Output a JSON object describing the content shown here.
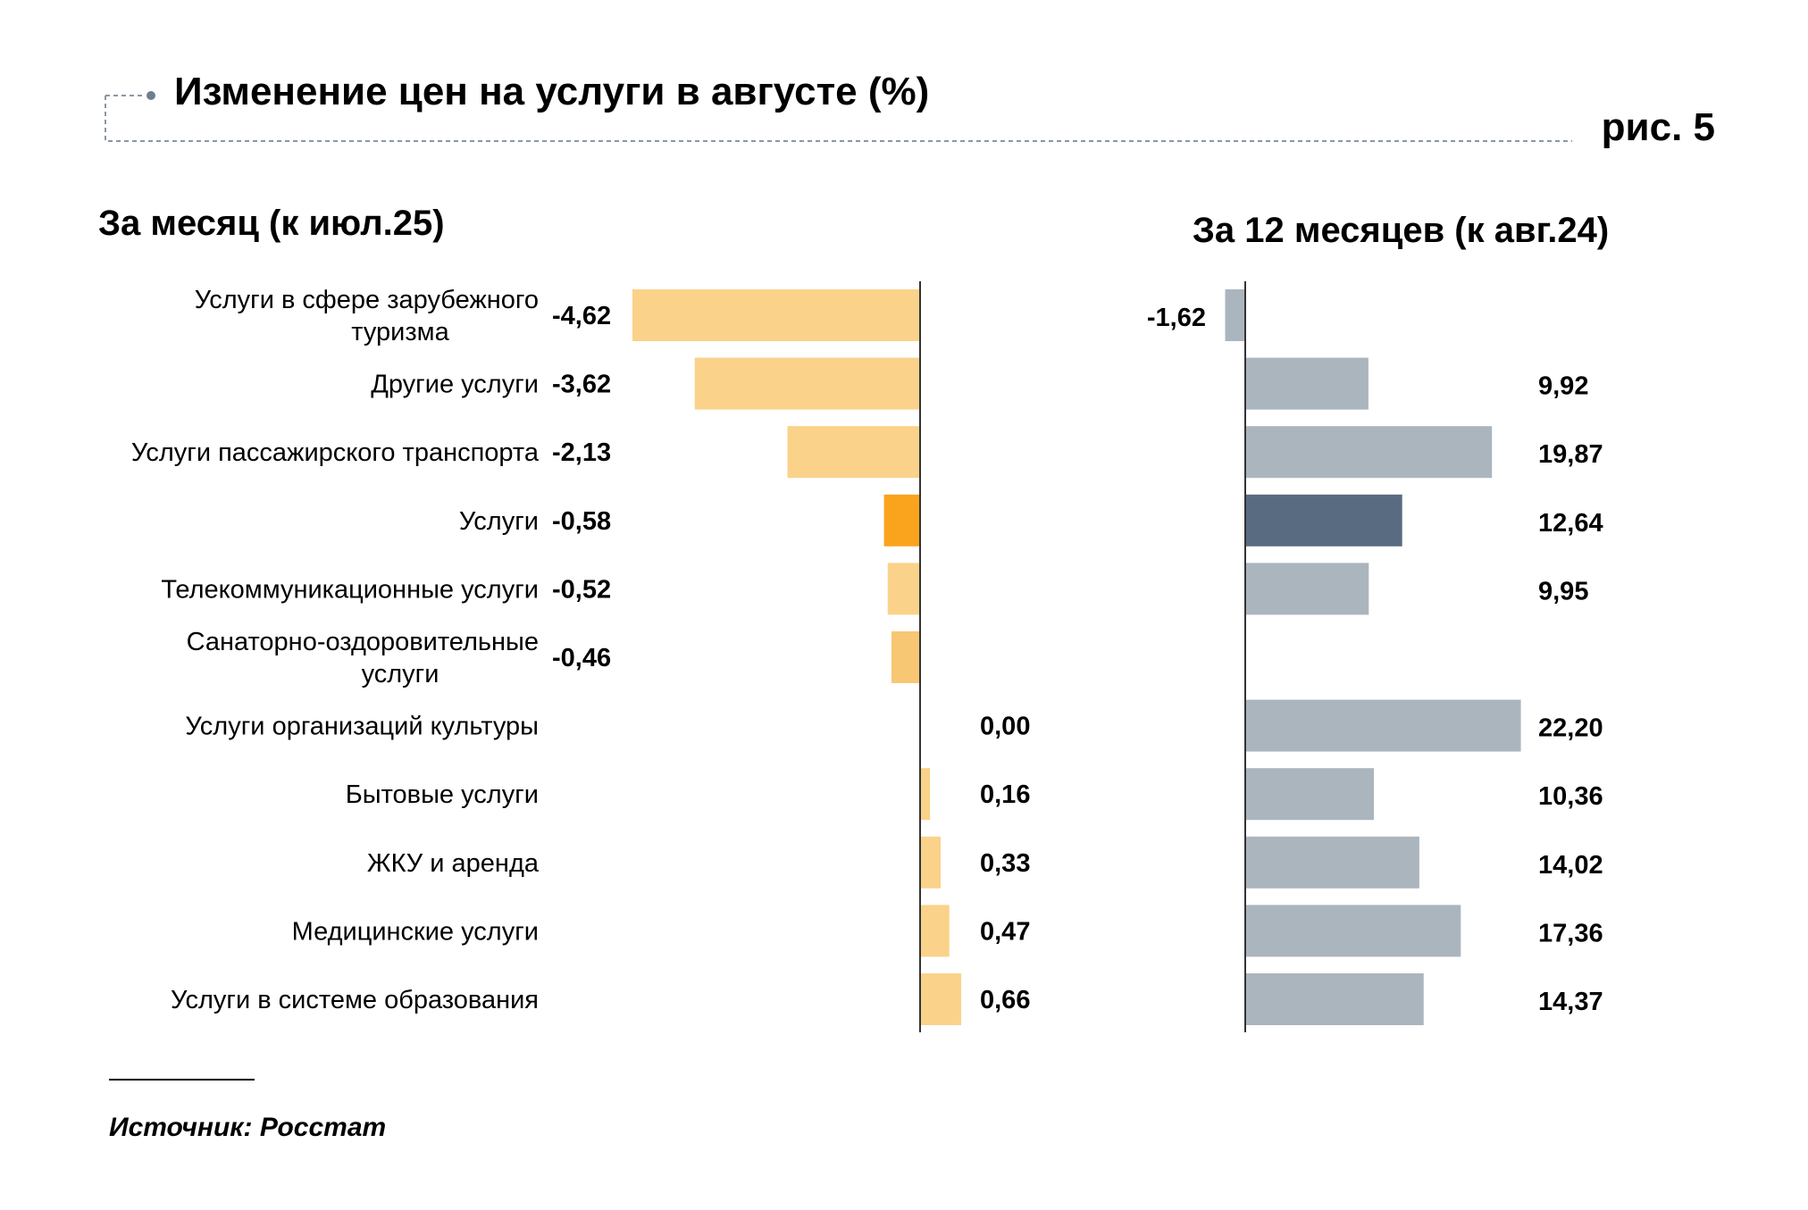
{
  "header": {
    "title": "Изменение цен на услуги в августе (%)",
    "figure_label": "рис. 5"
  },
  "source": {
    "text": "Источник: Росстат"
  },
  "colors": {
    "month_bar": "#FAD28A",
    "month_highlight": "#FAA41E",
    "year_bar": "#ABB5BE",
    "year_highlight": "#586B80",
    "axis": "#333333",
    "dash": "#8A97A3"
  },
  "chart_data": [
    {
      "type": "bar",
      "orientation": "horizontal",
      "title": "За месяц (к июл.25)",
      "categories": [
        [
          "Услуги в сфере зарубежного",
          "туризма"
        ],
        [
          "Другие услуги"
        ],
        [
          "Услуги пассажирского транспорта"
        ],
        [
          "Услуги"
        ],
        [
          "Телекоммуникационные услуги"
        ],
        [
          "Санаторно-оздоровительные",
          "услуги"
        ],
        [
          "Услуги организаций культуры"
        ],
        [
          "Бытовые услуги"
        ],
        [
          "ЖКУ и аренда"
        ],
        [
          "Медицинские услуги"
        ],
        [
          "Услуги в системе образования"
        ]
      ],
      "values": [
        -4.62,
        -3.62,
        -2.13,
        -0.58,
        -0.52,
        -0.46,
        0.0,
        0.16,
        0.33,
        0.47,
        0.66
      ],
      "labels": [
        "-4,62",
        "-3,62",
        "-2,13",
        "-0,58",
        "-0,52",
        "-0,46",
        "0,00",
        "0,16",
        "0,33",
        "0,47",
        "0,66"
      ],
      "highlight_index": 3
    },
    {
      "type": "bar",
      "orientation": "horizontal",
      "title": "За 12 месяцев (к авг.24)",
      "categories": [
        [
          "Услуги в сфере зарубежного",
          "туризма"
        ],
        [
          "Другие услуги"
        ],
        [
          "Услуги пассажирского транспорта"
        ],
        [
          "Услуги"
        ],
        [
          "Телекоммуникационные услуги"
        ],
        [
          "Санаторно-оздоровительные",
          "услуги"
        ],
        [
          "Услуги организаций культуры"
        ],
        [
          "Бытовые услуги"
        ],
        [
          "ЖКУ и аренда"
        ],
        [
          "Медицинские услуги"
        ],
        [
          "Услуги в системе образования"
        ]
      ],
      "values": [
        -1.62,
        9.92,
        19.87,
        12.64,
        9.95,
        null,
        22.2,
        10.36,
        14.02,
        17.36,
        14.37
      ],
      "labels": [
        "-1,62",
        "9,92",
        "19,87",
        "12,64",
        "9,95",
        "",
        "22,20",
        "10,36",
        "14,02",
        "17,36",
        "14,37"
      ],
      "highlight_index": 3
    }
  ]
}
